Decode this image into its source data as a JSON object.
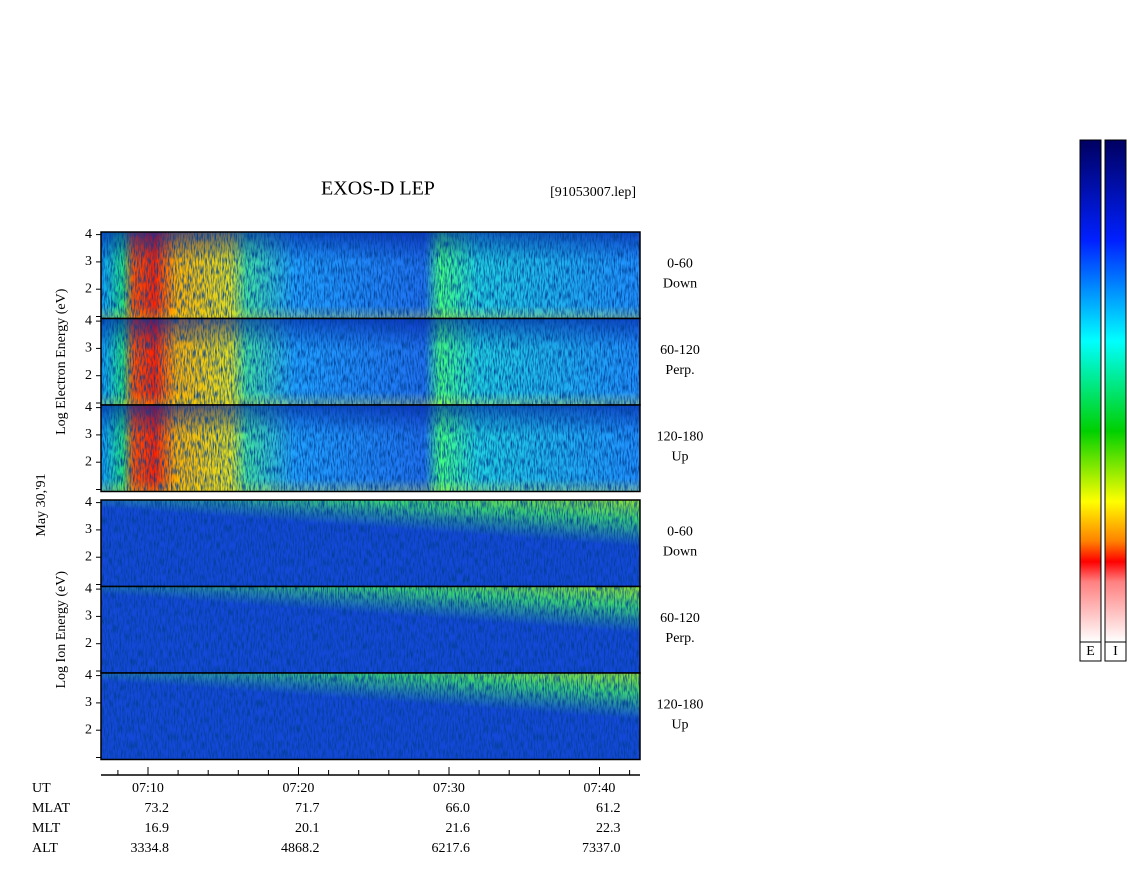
{
  "title": "EXOS-D LEP",
  "file": "[91053007.lep]",
  "date": "May 30,'91",
  "groups": [
    {
      "axis_label": "Log Electron Energy (eV)",
      "panels": [
        {
          "angle": "0-60",
          "direction": "Down"
        },
        {
          "angle": "60-120",
          "direction": "Perp."
        },
        {
          "angle": "120-180",
          "direction": "Up"
        }
      ]
    },
    {
      "axis_label": "Log Ion Energy (eV)",
      "panels": [
        {
          "angle": "0-60",
          "direction": "Down"
        },
        {
          "angle": "60-120",
          "direction": "Perp."
        },
        {
          "angle": "120-180",
          "direction": "Up"
        }
      ]
    }
  ],
  "energy_ticks": [
    "2",
    "3",
    "4"
  ],
  "ephemeris": [
    {
      "name": "UT",
      "values": [
        "07:10",
        "07:20",
        "07:30",
        "07:40"
      ]
    },
    {
      "name": "MLAT",
      "values": [
        "73.2",
        "71.7",
        "66.0",
        "61.2"
      ]
    },
    {
      "name": "MLT",
      "values": [
        "16.9",
        "20.1",
        "21.6",
        "22.3"
      ]
    },
    {
      "name": "ALT",
      "values": [
        "3334.8",
        "4868.2",
        "6217.6",
        "7337.0"
      ]
    }
  ],
  "colorbars": [
    "E",
    "I"
  ]
}
